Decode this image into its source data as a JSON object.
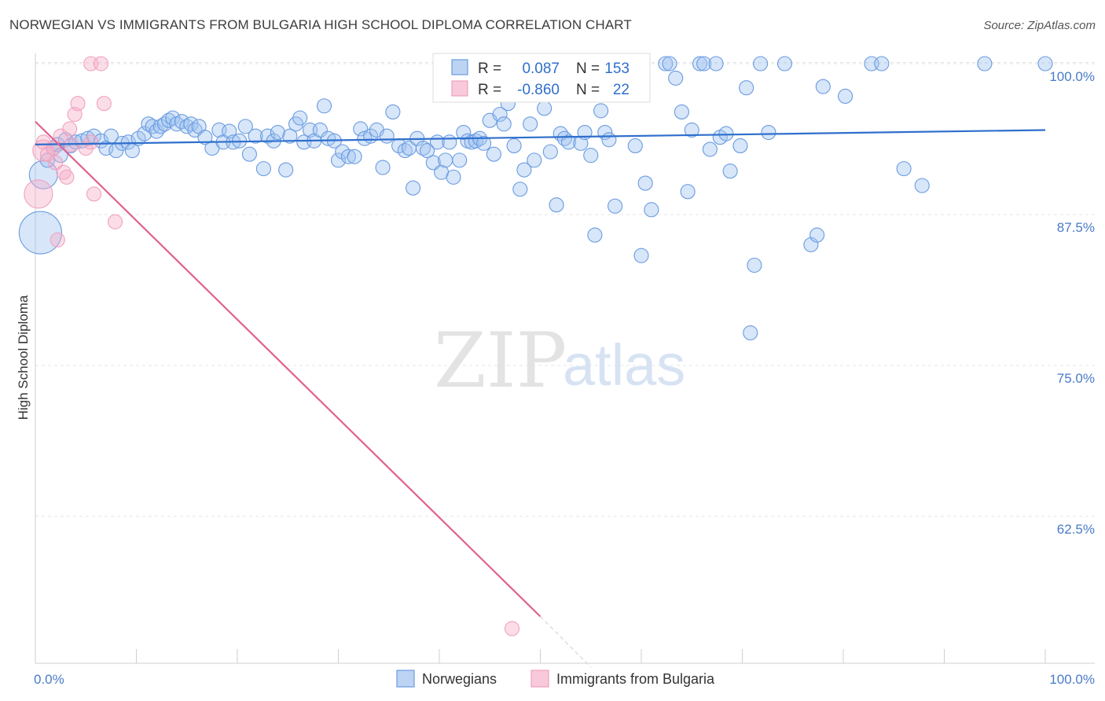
{
  "title": "NORWEGIAN VS IMMIGRANTS FROM BULGARIA HIGH SCHOOL DIPLOMA CORRELATION CHART",
  "source": "Source: ZipAtlas.com",
  "watermark": {
    "zip": "ZIP",
    "atlas": "atlas"
  },
  "colors": {
    "blue": "#6a9be0",
    "blue_line": "#2f6fcc",
    "pink": "#f0a1bf",
    "pink_line": "#e0628f",
    "tick": "#4a7bc8"
  },
  "legend_box": {
    "r_label": "R =",
    "n_label": "N =",
    "rows": [
      {
        "r": "0.087",
        "n": "153"
      },
      {
        "r": "-0.860",
        "n": "22"
      }
    ]
  },
  "chart_data": {
    "type": "scatter",
    "xlabel": "",
    "ylabel": "High School Diploma",
    "x_tick_labels": [
      "0.0%",
      "100.0%"
    ],
    "y_tick_labels": [
      "100.0%",
      "87.5%",
      "75.0%",
      "62.5%"
    ],
    "y_ticks": [
      100.0,
      87.5,
      75.0,
      62.5
    ],
    "xlim": [
      0,
      100
    ],
    "ylim": [
      50.0,
      101.5
    ],
    "grid": true,
    "legend_position": "bottom",
    "series": [
      {
        "name": "Norwegians",
        "color": "#6a9be0",
        "trend": {
          "x": [
            0,
            100
          ],
          "y": [
            93.3,
            94.5
          ]
        },
        "points": [
          {
            "x": 0.5,
            "y": 86.0,
            "s": 3
          },
          {
            "x": 0.8,
            "y": 90.8,
            "s": 2
          },
          {
            "x": 1.2,
            "y": 92.0
          },
          {
            "x": 1.8,
            "y": 93.0
          },
          {
            "x": 2.2,
            "y": 93.3
          },
          {
            "x": 2.5,
            "y": 92.4
          },
          {
            "x": 3.0,
            "y": 93.7
          },
          {
            "x": 3.5,
            "y": 93.2
          },
          {
            "x": 4.0,
            "y": 93.5
          },
          {
            "x": 4.6,
            "y": 93.6
          },
          {
            "x": 5.2,
            "y": 93.8
          },
          {
            "x": 5.8,
            "y": 94.0
          },
          {
            "x": 6.5,
            "y": 93.6
          },
          {
            "x": 7.0,
            "y": 93.0
          },
          {
            "x": 7.5,
            "y": 94.0
          },
          {
            "x": 8.0,
            "y": 92.8
          },
          {
            "x": 8.6,
            "y": 93.4
          },
          {
            "x": 9.2,
            "y": 93.5
          },
          {
            "x": 9.6,
            "y": 92.8
          },
          {
            "x": 10.2,
            "y": 93.8
          },
          {
            "x": 10.8,
            "y": 94.2
          },
          {
            "x": 11.2,
            "y": 95.0
          },
          {
            "x": 11.6,
            "y": 94.8
          },
          {
            "x": 12.0,
            "y": 94.4
          },
          {
            "x": 12.4,
            "y": 94.8
          },
          {
            "x": 12.8,
            "y": 95.0
          },
          {
            "x": 13.2,
            "y": 95.3
          },
          {
            "x": 13.6,
            "y": 95.5
          },
          {
            "x": 14.0,
            "y": 95.0
          },
          {
            "x": 14.5,
            "y": 95.2
          },
          {
            "x": 15.0,
            "y": 94.8
          },
          {
            "x": 15.4,
            "y": 95.0
          },
          {
            "x": 15.8,
            "y": 94.5
          },
          {
            "x": 16.2,
            "y": 94.8
          },
          {
            "x": 16.8,
            "y": 93.9
          },
          {
            "x": 17.5,
            "y": 93.0
          },
          {
            "x": 18.2,
            "y": 94.5
          },
          {
            "x": 18.6,
            "y": 93.5
          },
          {
            "x": 19.2,
            "y": 94.4
          },
          {
            "x": 19.6,
            "y": 93.5
          },
          {
            "x": 20.2,
            "y": 93.6
          },
          {
            "x": 20.8,
            "y": 94.8
          },
          {
            "x": 21.2,
            "y": 92.5
          },
          {
            "x": 21.8,
            "y": 94.0
          },
          {
            "x": 22.6,
            "y": 91.3
          },
          {
            "x": 23.0,
            "y": 94.0
          },
          {
            "x": 23.6,
            "y": 93.6
          },
          {
            "x": 24.0,
            "y": 94.3
          },
          {
            "x": 24.8,
            "y": 91.2
          },
          {
            "x": 25.2,
            "y": 94.0
          },
          {
            "x": 25.8,
            "y": 95.0
          },
          {
            "x": 26.2,
            "y": 95.5
          },
          {
            "x": 26.6,
            "y": 93.5
          },
          {
            "x": 27.2,
            "y": 94.5
          },
          {
            "x": 27.6,
            "y": 93.6
          },
          {
            "x": 28.2,
            "y": 94.5
          },
          {
            "x": 28.6,
            "y": 96.5
          },
          {
            "x": 29.0,
            "y": 93.8
          },
          {
            "x": 29.6,
            "y": 93.6
          },
          {
            "x": 30.0,
            "y": 92.0
          },
          {
            "x": 30.4,
            "y": 92.7
          },
          {
            "x": 31.0,
            "y": 92.3
          },
          {
            "x": 31.6,
            "y": 92.3
          },
          {
            "x": 32.2,
            "y": 94.6
          },
          {
            "x": 32.6,
            "y": 93.8
          },
          {
            "x": 33.2,
            "y": 94.0
          },
          {
            "x": 33.8,
            "y": 94.5
          },
          {
            "x": 34.4,
            "y": 91.4
          },
          {
            "x": 34.8,
            "y": 94.0
          },
          {
            "x": 35.4,
            "y": 96.0
          },
          {
            "x": 36.0,
            "y": 93.2
          },
          {
            "x": 36.6,
            "y": 92.8
          },
          {
            "x": 37.0,
            "y": 93.0
          },
          {
            "x": 37.4,
            "y": 89.7
          },
          {
            "x": 37.8,
            "y": 93.8
          },
          {
            "x": 38.4,
            "y": 93.0
          },
          {
            "x": 38.8,
            "y": 92.8
          },
          {
            "x": 39.4,
            "y": 91.8
          },
          {
            "x": 39.8,
            "y": 93.5
          },
          {
            "x": 40.2,
            "y": 91.0
          },
          {
            "x": 40.6,
            "y": 92.0
          },
          {
            "x": 41.0,
            "y": 93.5
          },
          {
            "x": 41.4,
            "y": 90.6
          },
          {
            "x": 42.0,
            "y": 92.0
          },
          {
            "x": 42.4,
            "y": 94.3
          },
          {
            "x": 42.8,
            "y": 93.6
          },
          {
            "x": 43.2,
            "y": 93.5
          },
          {
            "x": 43.6,
            "y": 93.6
          },
          {
            "x": 44.0,
            "y": 93.8
          },
          {
            "x": 44.4,
            "y": 93.4
          },
          {
            "x": 45.0,
            "y": 95.3
          },
          {
            "x": 45.4,
            "y": 92.5
          },
          {
            "x": 46.0,
            "y": 95.8
          },
          {
            "x": 46.4,
            "y": 95.0
          },
          {
            "x": 46.8,
            "y": 96.7
          },
          {
            "x": 47.4,
            "y": 93.2
          },
          {
            "x": 48.0,
            "y": 89.6
          },
          {
            "x": 48.4,
            "y": 91.2
          },
          {
            "x": 49.0,
            "y": 95.0
          },
          {
            "x": 49.4,
            "y": 92.0
          },
          {
            "x": 50.0,
            "y": 97.5
          },
          {
            "x": 50.4,
            "y": 96.3
          },
          {
            "x": 51.0,
            "y": 92.7
          },
          {
            "x": 51.6,
            "y": 88.3
          },
          {
            "x": 52.0,
            "y": 94.2
          },
          {
            "x": 52.4,
            "y": 93.8
          },
          {
            "x": 52.8,
            "y": 93.5
          },
          {
            "x": 53.4,
            "y": 100.0
          },
          {
            "x": 54.0,
            "y": 93.4
          },
          {
            "x": 54.4,
            "y": 94.3
          },
          {
            "x": 55.0,
            "y": 92.4
          },
          {
            "x": 55.4,
            "y": 85.8
          },
          {
            "x": 56.0,
            "y": 96.1
          },
          {
            "x": 56.4,
            "y": 94.3
          },
          {
            "x": 56.8,
            "y": 93.7
          },
          {
            "x": 57.4,
            "y": 88.2
          },
          {
            "x": 59.0,
            "y": 100.0
          },
          {
            "x": 59.4,
            "y": 93.2
          },
          {
            "x": 60.0,
            "y": 84.1
          },
          {
            "x": 60.4,
            "y": 90.1
          },
          {
            "x": 61.0,
            "y": 87.9
          },
          {
            "x": 62.4,
            "y": 100.0
          },
          {
            "x": 62.8,
            "y": 100.0
          },
          {
            "x": 63.4,
            "y": 98.8
          },
          {
            "x": 64.0,
            "y": 96.0
          },
          {
            "x": 64.6,
            "y": 89.4
          },
          {
            "x": 65.0,
            "y": 94.5
          },
          {
            "x": 65.8,
            "y": 100.0
          },
          {
            "x": 66.2,
            "y": 100.0
          },
          {
            "x": 66.8,
            "y": 92.9
          },
          {
            "x": 67.4,
            "y": 100.0
          },
          {
            "x": 67.8,
            "y": 93.9
          },
          {
            "x": 68.4,
            "y": 94.2
          },
          {
            "x": 68.8,
            "y": 91.1
          },
          {
            "x": 69.8,
            "y": 93.2
          },
          {
            "x": 70.4,
            "y": 98.0
          },
          {
            "x": 70.8,
            "y": 77.7
          },
          {
            "x": 71.2,
            "y": 83.3
          },
          {
            "x": 71.8,
            "y": 100.0
          },
          {
            "x": 72.6,
            "y": 94.3
          },
          {
            "x": 74.2,
            "y": 100.0
          },
          {
            "x": 76.8,
            "y": 85.0
          },
          {
            "x": 77.4,
            "y": 85.8
          },
          {
            "x": 78.0,
            "y": 98.1
          },
          {
            "x": 80.2,
            "y": 97.3
          },
          {
            "x": 82.8,
            "y": 100.0
          },
          {
            "x": 83.8,
            "y": 100.0
          },
          {
            "x": 86.0,
            "y": 91.3
          },
          {
            "x": 87.8,
            "y": 89.9
          },
          {
            "x": 94.0,
            "y": 100.0
          },
          {
            "x": 100.0,
            "y": 100.0
          }
        ]
      },
      {
        "name": "Immigrants from Bulgaria",
        "color": "#f0a1bf",
        "trend": {
          "x": [
            0,
            50
          ],
          "y": [
            95.2,
            54.2
          ]
        },
        "trend_dashed": {
          "x": [
            50,
            55
          ],
          "y": [
            54.2,
            50.0
          ]
        },
        "points": [
          {
            "x": 0.3,
            "y": 89.2,
            "s": 2
          },
          {
            "x": 0.8,
            "y": 92.8,
            "s": 1.5
          },
          {
            "x": 0.8,
            "y": 93.5
          },
          {
            "x": 1.2,
            "y": 92.5
          },
          {
            "x": 1.8,
            "y": 93.0
          },
          {
            "x": 2.0,
            "y": 91.8
          },
          {
            "x": 2.2,
            "y": 85.4
          },
          {
            "x": 2.5,
            "y": 94.0
          },
          {
            "x": 2.8,
            "y": 91.0
          },
          {
            "x": 3.1,
            "y": 90.6
          },
          {
            "x": 3.4,
            "y": 94.6
          },
          {
            "x": 3.6,
            "y": 93.3
          },
          {
            "x": 3.9,
            "y": 95.8
          },
          {
            "x": 4.2,
            "y": 96.7
          },
          {
            "x": 5.0,
            "y": 93.0
          },
          {
            "x": 5.5,
            "y": 93.5
          },
          {
            "x": 5.5,
            "y": 100.0
          },
          {
            "x": 5.8,
            "y": 89.2
          },
          {
            "x": 6.5,
            "y": 100.0
          },
          {
            "x": 6.8,
            "y": 96.7
          },
          {
            "x": 7.9,
            "y": 86.9
          },
          {
            "x": 47.2,
            "y": 53.2
          }
        ]
      }
    ]
  },
  "bottom_legend": [
    {
      "label": "Norwegians"
    },
    {
      "label": "Immigrants from Bulgaria"
    }
  ]
}
